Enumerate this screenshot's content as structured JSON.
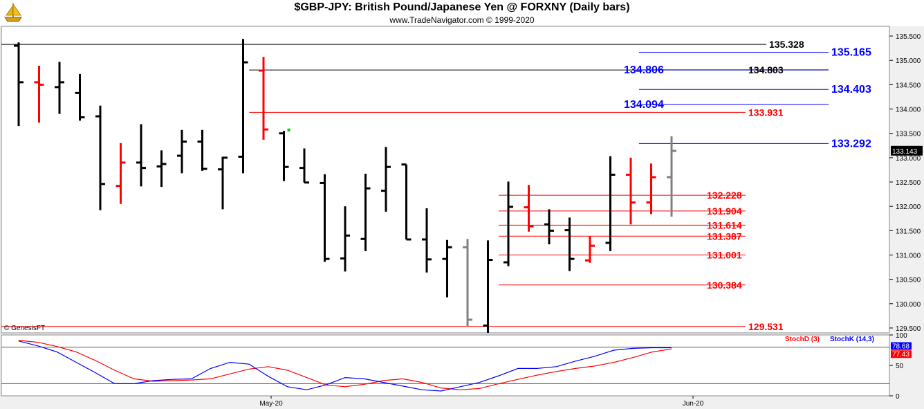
{
  "header": {
    "title": "$GBP-JPY:  British Pound/Japanese Yen @ FORXNY  (Daily bars)",
    "subtitle": "www.TradeNavigator.com © 1999-2020",
    "logo_icon": "gold-sailboat-icon"
  },
  "colors": {
    "up_bar": "#000000",
    "down_bar": "#ff0000",
    "neutral_bar": "#808080",
    "stoch_d": "#ff0000",
    "stoch_k": "#0000ff",
    "level_red": "#ff0000",
    "level_blue": "#0000ff",
    "level_black": "#000000",
    "panel_bg": "#ffffff",
    "outer_bg": "#f0f0f0"
  },
  "chart_data": [
    {
      "type": "ohlc",
      "title": "$GBP-JPY:  British Pound/Japanese Yen @ FORXNY  (Daily bars)",
      "watermark": "© GenesisFT",
      "ylim": [
        129.4,
        135.7
      ],
      "y_ticks": [
        "129.500",
        "130.000",
        "130.500",
        "131.000",
        "131.500",
        "132.000",
        "132.500",
        "133.000",
        "133.500",
        "134.000",
        "134.500",
        "135.000",
        "135.500"
      ],
      "x_ticks": [
        "May-20",
        "Jun-20"
      ],
      "last_price": "133.143",
      "bars": [
        {
          "o": 135.3,
          "h": 135.37,
          "l": 133.65,
          "c": 134.55,
          "color": "up"
        },
        {
          "o": 134.55,
          "h": 134.89,
          "l": 133.72,
          "c": 134.5,
          "color": "down"
        },
        {
          "o": 134.45,
          "h": 134.97,
          "l": 133.9,
          "c": 134.55,
          "color": "up"
        },
        {
          "o": 134.33,
          "h": 134.72,
          "l": 133.76,
          "c": 133.83,
          "color": "up"
        },
        {
          "o": 133.85,
          "h": 134.07,
          "l": 131.92,
          "c": 132.46,
          "color": "up"
        },
        {
          "o": 132.42,
          "h": 133.3,
          "l": 132.05,
          "c": 132.9,
          "color": "down"
        },
        {
          "o": 132.9,
          "h": 133.69,
          "l": 132.41,
          "c": 132.79,
          "color": "up"
        },
        {
          "o": 132.82,
          "h": 133.15,
          "l": 132.4,
          "c": 132.87,
          "color": "up"
        },
        {
          "o": 133.04,
          "h": 133.57,
          "l": 132.68,
          "c": 133.33,
          "color": "up"
        },
        {
          "o": 133.33,
          "h": 133.57,
          "l": 132.73,
          "c": 132.77,
          "color": "up"
        },
        {
          "o": 132.76,
          "h": 133.02,
          "l": 131.94,
          "c": 133.0,
          "color": "up"
        },
        {
          "o": 133.02,
          "h": 135.44,
          "l": 132.68,
          "c": 134.96,
          "color": "up"
        },
        {
          "o": 134.79,
          "h": 135.07,
          "l": 133.37,
          "c": 133.58,
          "color": "down"
        },
        {
          "o": 133.5,
          "h": 133.55,
          "l": 132.52,
          "c": 132.81,
          "color": "up"
        },
        {
          "o": 132.79,
          "h": 133.19,
          "l": 132.49,
          "c": 132.49,
          "color": "up"
        },
        {
          "o": 132.48,
          "h": 132.66,
          "l": 130.86,
          "c": 130.92,
          "color": "up"
        },
        {
          "o": 130.93,
          "h": 132.0,
          "l": 130.66,
          "c": 131.4,
          "color": "up"
        },
        {
          "o": 131.33,
          "h": 132.67,
          "l": 131.08,
          "c": 132.37,
          "color": "up"
        },
        {
          "o": 132.32,
          "h": 133.22,
          "l": 131.89,
          "c": 132.81,
          "color": "up"
        },
        {
          "o": 132.86,
          "h": 132.86,
          "l": 131.32,
          "c": 131.32,
          "color": "up"
        },
        {
          "o": 131.32,
          "h": 131.96,
          "l": 130.64,
          "c": 130.91,
          "color": "up"
        },
        {
          "o": 130.92,
          "h": 131.31,
          "l": 130.13,
          "c": 131.16,
          "color": "up"
        },
        {
          "o": 131.16,
          "h": 131.33,
          "l": 129.54,
          "c": 129.67,
          "color": "neutral"
        },
        {
          "o": 129.55,
          "h": 131.3,
          "l": 129.4,
          "c": 130.9,
          "color": "up"
        },
        {
          "o": 130.85,
          "h": 132.51,
          "l": 130.77,
          "c": 131.99,
          "color": "up"
        },
        {
          "o": 131.98,
          "h": 132.44,
          "l": 131.48,
          "c": 131.59,
          "color": "down"
        },
        {
          "o": 131.63,
          "h": 131.94,
          "l": 131.22,
          "c": 131.5,
          "color": "up"
        },
        {
          "o": 131.51,
          "h": 131.77,
          "l": 130.67,
          "c": 130.92,
          "color": "up"
        },
        {
          "o": 130.89,
          "h": 131.39,
          "l": 130.84,
          "c": 131.19,
          "color": "down"
        },
        {
          "o": 131.25,
          "h": 133.03,
          "l": 131.08,
          "c": 132.65,
          "color": "up"
        },
        {
          "o": 132.65,
          "h": 133.0,
          "l": 131.63,
          "c": 132.08,
          "color": "down"
        },
        {
          "o": 132.08,
          "h": 132.88,
          "l": 131.84,
          "c": 132.6,
          "color": "down"
        },
        {
          "o": 132.6,
          "h": 133.44,
          "l": 131.79,
          "c": 133.14,
          "color": "neutral"
        }
      ],
      "levels": [
        {
          "label": "135.328",
          "value": 135.328,
          "color": "black",
          "x_from": 0
        },
        {
          "label": "135.165",
          "value": 135.165,
          "color": "blue",
          "x_from": 0.718
        },
        {
          "label": "134.803",
          "value": 134.803,
          "color": "black",
          "x_from": 0.279
        },
        {
          "label": "134.806",
          "value": 134.806,
          "color": "blue",
          "x_from": 0.718
        },
        {
          "label": "134.403",
          "value": 134.403,
          "color": "blue",
          "x_from": 0.718
        },
        {
          "label": "134.094",
          "value": 134.094,
          "color": "blue",
          "x_from": 0.718
        },
        {
          "label": "133.931",
          "value": 133.931,
          "color": "red",
          "x_from": 0.279
        },
        {
          "label": "133.292",
          "value": 133.292,
          "color": "blue",
          "x_from": 0.718
        },
        {
          "label": "132.228",
          "value": 132.228,
          "color": "red",
          "x_from": 0.56
        },
        {
          "label": "131.904",
          "value": 131.904,
          "color": "red",
          "x_from": 0.56
        },
        {
          "label": "131.614",
          "value": 131.614,
          "color": "red",
          "x_from": 0.56
        },
        {
          "label": "131.387",
          "value": 131.387,
          "color": "red",
          "x_from": 0.56
        },
        {
          "label": "131.001",
          "value": 131.001,
          "color": "red",
          "x_from": 0.56
        },
        {
          "label": "130.384",
          "value": 130.384,
          "color": "red",
          "x_from": 0.56
        },
        {
          "label": "129.531",
          "value": 129.531,
          "color": "red",
          "x_from": 0
        }
      ]
    },
    {
      "type": "line",
      "ylim": [
        0,
        100
      ],
      "y_ticks": [
        "0",
        "50",
        "100"
      ],
      "overbought": 80,
      "oversold": 20,
      "last_k": "78.68",
      "last_d": "77.43",
      "series": [
        {
          "name": "StochD (3)",
          "color": "red",
          "values": [
            91,
            88,
            81,
            72,
            58,
            42,
            28,
            24,
            25,
            26,
            28,
            36,
            44,
            48,
            42,
            30,
            18,
            15,
            19,
            25,
            28,
            22,
            13,
            10,
            12,
            20,
            27,
            34,
            40,
            45,
            49,
            55,
            63,
            72,
            77
          ]
        },
        {
          "name": "StochK (14,3)",
          "color": "blue",
          "values": [
            90,
            82,
            72,
            55,
            38,
            20,
            20,
            25,
            27,
            28,
            45,
            55,
            52,
            32,
            15,
            10,
            18,
            30,
            28,
            22,
            16,
            10,
            8,
            15,
            22,
            33,
            45,
            45,
            48,
            57,
            65,
            75,
            78,
            79,
            79
          ]
        }
      ]
    }
  ]
}
